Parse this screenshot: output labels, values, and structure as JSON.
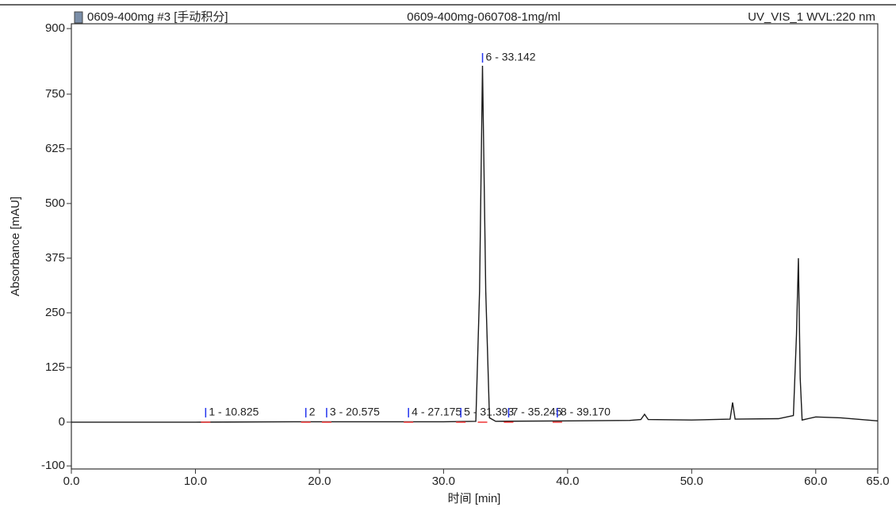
{
  "chart_data": {
    "type": "line",
    "title_left": "0609-400mg #3 [手动积分]",
    "title": "0609-400mg-060708-1mg/ml",
    "title_right": "UV_VIS_1 WVL:220 nm",
    "ylabel": "Absorbance [mAU]",
    "xlabel": "时间 [min]",
    "color": "#1a1a1a",
    "xlim": [
      0,
      65
    ],
    "ylim": [
      -107,
      911
    ],
    "xticks": [
      {
        "value": 0,
        "label": "0.0"
      },
      {
        "value": 10,
        "label": "10.0"
      },
      {
        "value": 20,
        "label": "20.0"
      },
      {
        "value": 30,
        "label": "30.0"
      },
      {
        "value": 40,
        "label": "40.0"
      },
      {
        "value": 50,
        "label": "50.0"
      },
      {
        "value": 60,
        "label": "60.0"
      },
      {
        "value": 65,
        "label": "65.0"
      }
    ],
    "yticks": [
      -100,
      0,
      125,
      250,
      375,
      500,
      625,
      750,
      900
    ],
    "x": [
      0,
      10,
      18,
      30,
      32.6,
      32.9,
      33.142,
      33.4,
      33.7,
      34.2,
      40,
      45,
      45.9,
      46.2,
      46.5,
      50,
      53.1,
      53.3,
      53.5,
      57,
      58.2,
      58.45,
      58.6,
      58.75,
      58.9,
      60,
      62,
      65
    ],
    "values": [
      0,
      0,
      1,
      1,
      2,
      300,
      815,
      300,
      10,
      2,
      3,
      4,
      6,
      18,
      6,
      5,
      7,
      45,
      7,
      8,
      15,
      200,
      375,
      100,
      5,
      12,
      10,
      3
    ],
    "peaks": [
      {
        "label": "1 - 10.825",
        "x": 10.825
      },
      {
        "label": "2",
        "x": 18.9
      },
      {
        "label": "3 - 20.575",
        "x": 20.575
      },
      {
        "label": "4 - 27.175",
        "x": 27.175
      },
      {
        "label": "5 - 31.393",
        "x": 31.393
      },
      {
        "label": "6 - 33.142",
        "x": 33.142
      },
      {
        "label": "7 - 35.245",
        "x": 35.245
      },
      {
        "label": "8 - 39.170",
        "x": 39.17
      }
    ]
  }
}
